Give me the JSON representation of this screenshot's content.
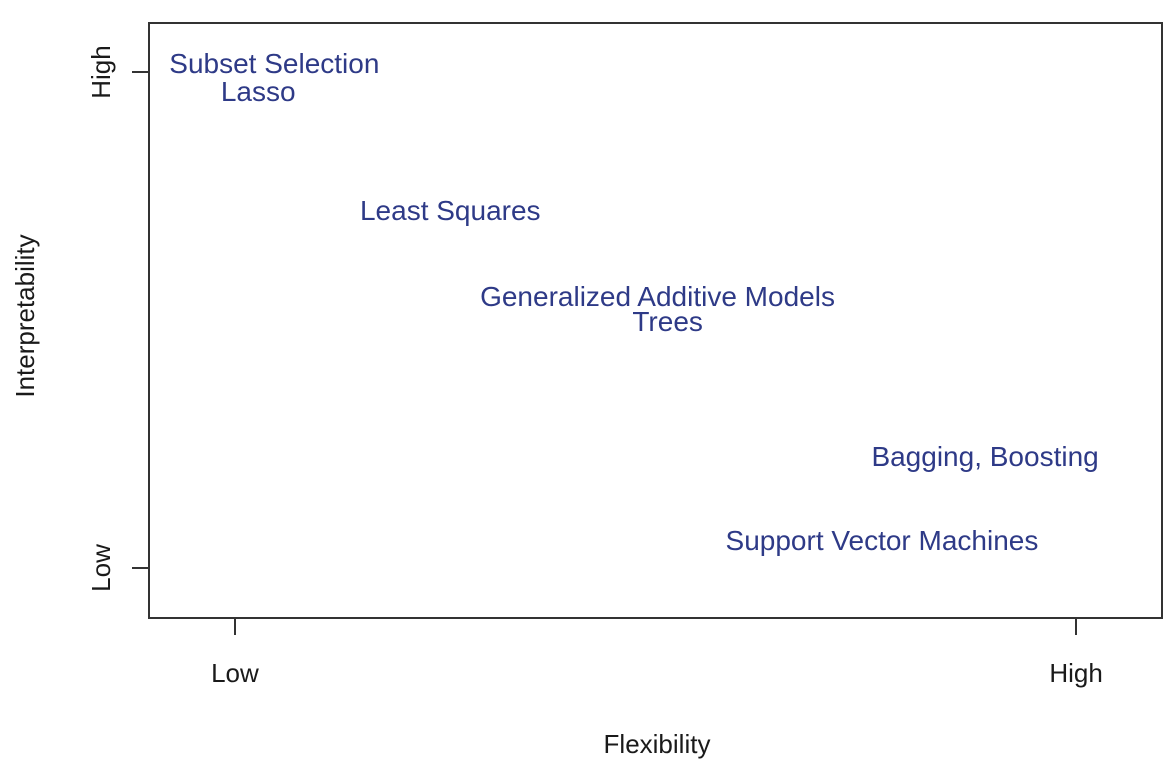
{
  "chart_data": {
    "type": "scatter",
    "title": "",
    "xlabel": "Flexibility",
    "ylabel": "Interpretability",
    "xlim": [
      0,
      1
    ],
    "ylim": [
      0,
      1
    ],
    "grid": false,
    "legend": "none",
    "colors": {
      "method_label": "#2e3a87",
      "axis_text": "#1a1a1a",
      "axis_line": "#333333"
    },
    "x_ticks": [
      {
        "label": "Low",
        "pos": 0.084
      },
      {
        "label": "High",
        "pos": 0.916
      }
    ],
    "y_ticks": [
      {
        "label": "High",
        "pos": 0.919
      },
      {
        "label": "Low",
        "pos": 0.082
      }
    ],
    "points": [
      {
        "label": "Subset Selection",
        "flexibility": 0.123,
        "interpretability": 0.933
      },
      {
        "label": "Lasso",
        "flexibility": 0.107,
        "interpretability": 0.886
      },
      {
        "label": "Least Squares",
        "flexibility": 0.297,
        "interpretability": 0.684
      },
      {
        "label": "Generalized Additive Models",
        "flexibility": 0.502,
        "interpretability": 0.539
      },
      {
        "label": "Trees",
        "flexibility": 0.512,
        "interpretability": 0.497
      },
      {
        "label": "Bagging, Boosting",
        "flexibility": 0.826,
        "interpretability": 0.269
      },
      {
        "label": "Support Vector Machines",
        "flexibility": 0.724,
        "interpretability": 0.128
      }
    ]
  }
}
